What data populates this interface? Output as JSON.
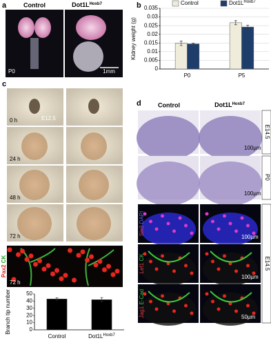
{
  "panels": {
    "a": {
      "label": "a",
      "col1": "Control",
      "col2": "Dot1L",
      "col2_sup": "Hoxb7",
      "stage": "P0",
      "scale": "1mm"
    },
    "b": {
      "label": "b"
    },
    "c": {
      "label": "c",
      "times": [
        "0 h",
        "24 h",
        "48 h",
        "72 h"
      ],
      "stage": "E12.5",
      "stain1": "Pax2",
      "stain2": "CK",
      "time_fluor": "72 h"
    },
    "d": {
      "label": "d",
      "col1": "Control",
      "col2": "Dot1L",
      "col2_sup": "Hoxb7",
      "rows": [
        {
          "stage": "E14.5",
          "scale": "100µm"
        },
        {
          "stage": "P0",
          "scale": "100µm"
        }
      ],
      "fluor_rows": [
        {
          "stain1": "Six2",
          "stain2": "DAPI",
          "scale": "100µm"
        },
        {
          "stain1": "Lef1",
          "stain2": "CK",
          "scale": "100µm"
        },
        {
          "stain1": "Jag1",
          "stain2": "E-Cad",
          "scale": "50µm"
        }
      ],
      "fluor_stage": "E14.5"
    }
  },
  "chart_data": [
    {
      "type": "bar",
      "y_label": "Kidney weight (g)",
      "categories": [
        "P0",
        "P5"
      ],
      "series": [
        {
          "name": "Control",
          "color": "#efecdc",
          "values": [
            0.0148,
            0.0267
          ],
          "errors": [
            0.0013,
            0.0012
          ]
        },
        {
          "name": "Dot1L",
          "name_superscript": "Hoxb7",
          "color": "#1f3d6b",
          "values": [
            0.0145,
            0.0242
          ],
          "errors": [
            0.0004,
            0.001
          ]
        }
      ],
      "ylim": [
        0,
        0.035
      ],
      "yticks": [
        0,
        0.005,
        0.01,
        0.015,
        0.02,
        0.025,
        0.03,
        0.035
      ],
      "grid": true,
      "legend": "top"
    },
    {
      "type": "bar",
      "y_label": "Branch tip number",
      "categories": [
        "Control",
        "Dot1L"
      ],
      "category_superscripts": [
        {
          "index": 1,
          "text": "Hoxb7"
        }
      ],
      "series": [
        {
          "color": "#000000",
          "values": [
            43,
            42
          ],
          "errors": [
            1.5,
            3
          ]
        }
      ],
      "ylim": [
        0,
        50
      ],
      "yticks": [
        0,
        10,
        20,
        30,
        40,
        50
      ],
      "grid": false
    }
  ]
}
